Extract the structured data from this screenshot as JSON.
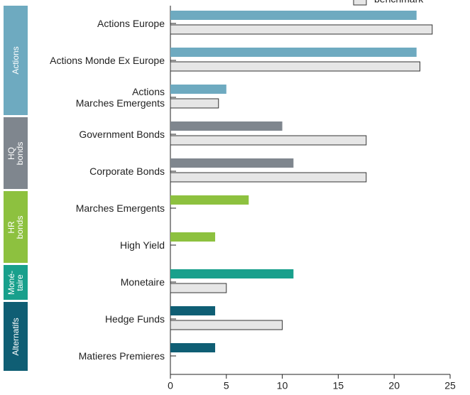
{
  "chart_data": {
    "type": "bar",
    "orientation": "horizontal",
    "categories": [
      "Actions Europe",
      "Actions Monde Ex Europe",
      "Actions\nMarches Emergents",
      "Government Bonds",
      "Corporate Bonds",
      "Marches Emergents",
      "High Yield",
      "Monetaire",
      "Hedge Funds",
      "Matieres Premieres"
    ],
    "groups": [
      {
        "name": "Actions",
        "color": "#6eaac0",
        "count": 3
      },
      {
        "name": "HQ bonds",
        "color": "#7f868e",
        "count": 2
      },
      {
        "name": "HR bonds",
        "color": "#8dc13f",
        "count": 2
      },
      {
        "name": "Moné-\ntaire",
        "color": "#18a08c",
        "count": 1
      },
      {
        "name": "Alternatifs",
        "color": "#0f5e74",
        "count": 2
      }
    ],
    "series": [
      {
        "color_by": "group",
        "values": [
          22,
          22,
          5,
          10,
          11,
          7,
          4,
          11,
          4,
          4
        ]
      },
      {
        "name": "benchmark",
        "color": "#e6e6e6",
        "stroke": "#333333",
        "values": [
          23.4,
          22.3,
          4.3,
          17.5,
          17.5,
          0,
          0,
          5,
          10,
          0
        ]
      }
    ],
    "xlim": [
      0,
      25
    ],
    "xticks": [
      0,
      5,
      10,
      15,
      20,
      25
    ],
    "legend": "top-right"
  }
}
